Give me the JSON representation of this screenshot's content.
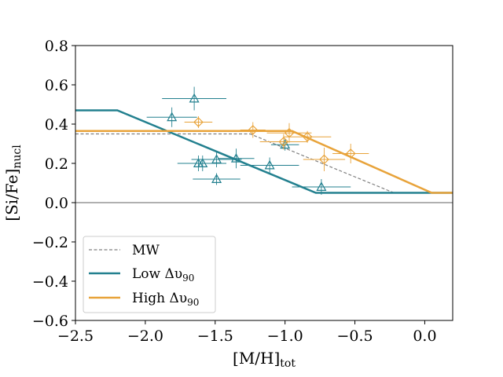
{
  "chart_data": {
    "type": "scatter",
    "title": "",
    "xlabel": {
      "main": "[M/H]",
      "sub": "tot"
    },
    "ylabel": {
      "main": "[Si/Fe]",
      "sub": "nucl"
    },
    "xlim": [
      -2.5,
      0.2
    ],
    "ylim": [
      -0.6,
      0.8
    ],
    "xticks": [
      -2.5,
      -2.0,
      -1.5,
      -1.0,
      -0.5,
      0.0
    ],
    "yticks": [
      -0.6,
      -0.4,
      -0.2,
      0.0,
      0.2,
      0.4,
      0.6,
      0.8
    ],
    "x_tick_labels": [
      "−2.5",
      "−2.0",
      "−1.5",
      "−1.0",
      "−0.5",
      "0.0"
    ],
    "y_tick_labels": [
      "−0.6",
      "−0.4",
      "−0.2",
      "0.0",
      "0.2",
      "0.4",
      "0.6",
      "0.8"
    ],
    "zero_line": 0.0,
    "legend_position": "lower-left",
    "legend": [
      {
        "label": "MW",
        "key": "mw"
      },
      {
        "label": "Low Δυ",
        "sub": "90",
        "key": "low"
      },
      {
        "label": "High Δυ",
        "sub": "90",
        "key": "high"
      }
    ],
    "series": [
      {
        "key": "mw",
        "name": "MW",
        "kind": "line",
        "style": "dashed",
        "color": "#808080",
        "x": [
          -2.5,
          -1.25,
          -0.22
        ],
        "y": [
          0.35,
          0.35,
          0.05
        ]
      },
      {
        "key": "low",
        "name": "Low Δυ 90 model",
        "kind": "line",
        "style": "solid",
        "color": "#23808f",
        "x": [
          -2.5,
          -2.2,
          -0.78,
          0.2
        ],
        "y": [
          0.47,
          0.47,
          0.05,
          0.05
        ]
      },
      {
        "key": "high",
        "name": "High Δυ 90 model",
        "kind": "line",
        "style": "solid",
        "color": "#e8a33a",
        "x": [
          -2.5,
          -0.95,
          0.05,
          0.2
        ],
        "y": [
          0.365,
          0.365,
          0.05,
          0.05
        ]
      },
      {
        "key": "low_pts",
        "name": "Low Δυ 90 data",
        "kind": "points",
        "marker": "triangle",
        "color": "#23808f",
        "points": [
          {
            "x": -1.65,
            "y": 0.53,
            "xerr": 0.23,
            "yerr": 0.06
          },
          {
            "x": -1.81,
            "y": 0.435,
            "xerr": 0.18,
            "yerr": 0.05
          },
          {
            "x": -1.62,
            "y": 0.2,
            "xerr": 0.15,
            "yerr": 0.04
          },
          {
            "x": -1.59,
            "y": 0.2,
            "xerr": 0.17,
            "yerr": 0.04
          },
          {
            "x": -1.49,
            "y": 0.22,
            "xerr": 0.18,
            "yerr": 0.04
          },
          {
            "x": -1.49,
            "y": 0.12,
            "xerr": 0.17,
            "yerr": 0.03
          },
          {
            "x": -1.35,
            "y": 0.225,
            "xerr": 0.13,
            "yerr": 0.05
          },
          {
            "x": -1.11,
            "y": 0.19,
            "xerr": 0.21,
            "yerr": 0.04
          },
          {
            "x": -1.0,
            "y": 0.295,
            "xerr": 0.1,
            "yerr": 0.03
          },
          {
            "x": -0.74,
            "y": 0.08,
            "xerr": 0.21,
            "yerr": 0.04
          }
        ]
      },
      {
        "key": "high_pts",
        "name": "High Δυ 90 data",
        "kind": "points",
        "marker": "diamond",
        "color": "#e8a33a",
        "points": [
          {
            "x": -1.62,
            "y": 0.41,
            "xerr": 0.1,
            "yerr": 0.03
          },
          {
            "x": -1.23,
            "y": 0.37,
            "xerr": 0.09,
            "yerr": 0.04
          },
          {
            "x": -1.01,
            "y": 0.31,
            "xerr": 0.17,
            "yerr": 0.04
          },
          {
            "x": -0.97,
            "y": 0.355,
            "xerr": 0.16,
            "yerr": 0.05
          },
          {
            "x": -0.84,
            "y": 0.335,
            "xerr": 0.17,
            "yerr": 0.03
          },
          {
            "x": -0.72,
            "y": 0.22,
            "xerr": 0.15,
            "yerr": 0.06
          },
          {
            "x": -0.53,
            "y": 0.25,
            "xerr": 0.13,
            "yerr": 0.05
          }
        ]
      }
    ]
  }
}
